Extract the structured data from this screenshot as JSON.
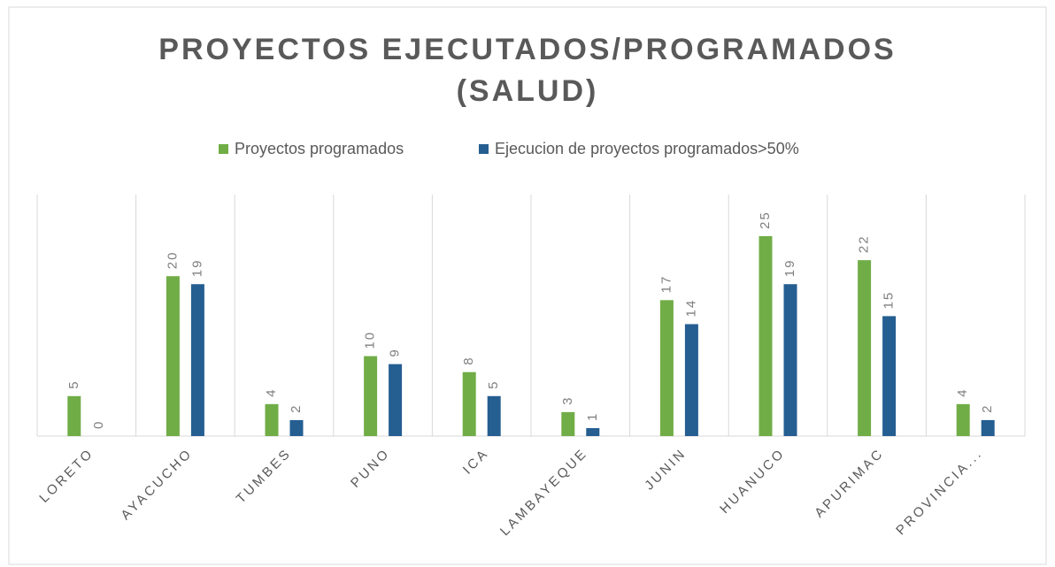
{
  "chart_data": {
    "type": "bar",
    "title": [
      "PROYECTOS  EJECUTADOS/PROGRAMADOS",
      "(SALUD)"
    ],
    "categories": [
      "LORETO",
      "AYACUCHO",
      "TUMBES",
      "PUNO",
      "ICA",
      "LAMBAYEQUE",
      "JUNIN",
      "HUANUCO",
      "APURIMAC",
      "PROVINCIA..."
    ],
    "series": [
      {
        "name": "Proyectos programados",
        "color": "#70ad47",
        "values": [
          5,
          20,
          4,
          10,
          8,
          3,
          17,
          25,
          22,
          4
        ]
      },
      {
        "name": "Ejecucion de proyectos programados>50%",
        "color": "#255e91",
        "values": [
          0,
          19,
          2,
          9,
          5,
          1,
          14,
          19,
          15,
          2
        ]
      }
    ],
    "legend": "top",
    "grid": true
  }
}
